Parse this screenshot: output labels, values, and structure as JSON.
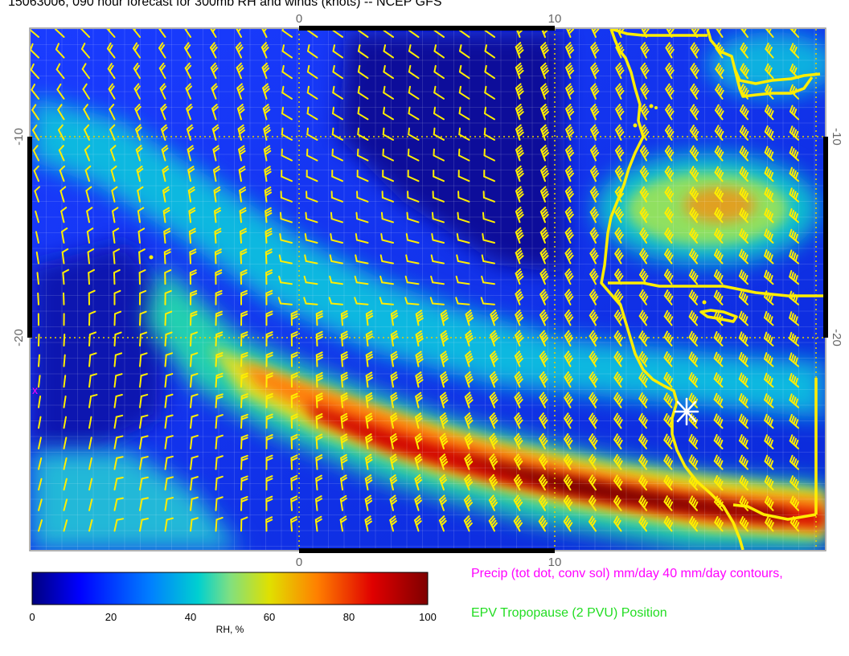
{
  "title": "15063006, 090 hour forecast for 300mb RH and winds (knots) -- NCEP GFS",
  "map": {
    "field": "300mb RH and winds (knots)",
    "colors": {
      "coast": "#ffee00",
      "barb": "#ffee00",
      "grid": "#e8d200",
      "max_region": "#5a0000",
      "star": "#ffffff",
      "precip": "#ff00ff"
    },
    "lon_ticks": [
      "0",
      "10"
    ],
    "lat_ticks": [
      "-10",
      "-20"
    ]
  },
  "colorbar": {
    "ticks": [
      "0",
      "20",
      "40",
      "60",
      "80",
      "100"
    ],
    "label": "RH, %",
    "stops": [
      "#00007f",
      "#0000ff",
      "#0080ff",
      "#00d0d0",
      "#80e080",
      "#e0e000",
      "#ff8000",
      "#e00000",
      "#7f0000"
    ]
  },
  "notes": {
    "precip": "Precip (tot dot, conv sol) mm/day 40 mm/day contours,",
    "epv": "EPV Tropopause (2 PVU) Position"
  }
}
